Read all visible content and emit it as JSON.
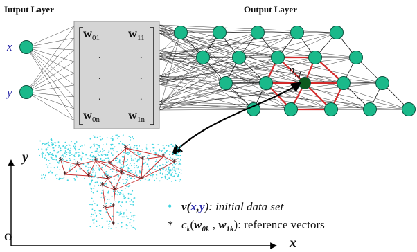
{
  "headings": {
    "input_layer": "Iutput Layer",
    "output_layer": "Output Layer"
  },
  "inputs": {
    "x": "x",
    "y": "y"
  },
  "weight_matrix": {
    "w01": "w",
    "w01_sub": "01",
    "w11": "w",
    "w11_sub": "11",
    "dot": ".",
    "w0n": "w",
    "w0n_sub": "0n",
    "w1n": "w",
    "w1n_sub": "1n"
  },
  "neuron_label": {
    "base": "n",
    "sub": "i,j"
  },
  "axes": {
    "y": "y",
    "x": "x",
    "origin": "O"
  },
  "legend": {
    "data_bullet": "•",
    "data_text": "v(x,y): initial data set",
    "data_v": "v(",
    "data_x": "x",
    "data_comma": ",",
    "data_y": "y",
    "data_rest": "): initial data set",
    "ref_bullet": "*",
    "ref_c": "c",
    "ref_k": "k",
    "ref_open": "(",
    "ref_w0k": "w",
    "ref_w0k_sub": "0k",
    "ref_comma": " , ",
    "ref_w1k": "w",
    "ref_w1k_sub": "1k",
    "ref_rest": "): reference vectors"
  },
  "colors": {
    "node_fill": "#1ab98a",
    "node_stroke": "#0a4f3c",
    "winner_fill": "#0d5a1e",
    "hex_red": "#d42a2a",
    "data_cyan": "#3fd4e0",
    "ref_red": "#c62b2b",
    "input_label_blue": "#2828a8",
    "matrix_fill": "#d5d5d5"
  }
}
